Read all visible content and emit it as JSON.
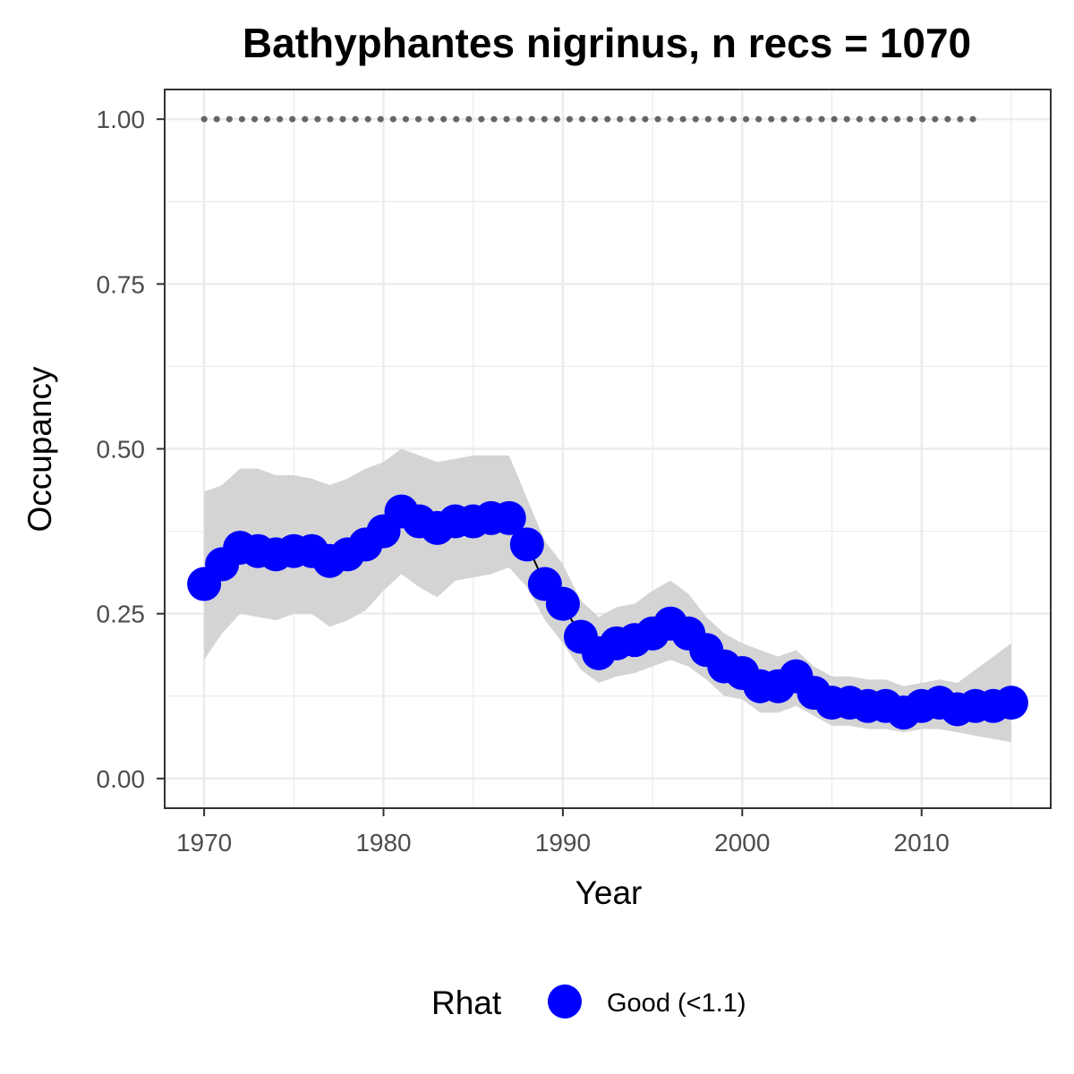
{
  "chart_data": {
    "type": "line",
    "title": "Bathyphantes nigrinus, n recs = 1070",
    "xlabel": "Year",
    "ylabel": "Occupancy",
    "xlim": [
      1967.8,
      2017.2
    ],
    "ylim": [
      -0.045,
      1.045
    ],
    "x_ticks": [
      1970,
      1980,
      1990,
      2000,
      2010
    ],
    "y_ticks": [
      0,
      0.25,
      0.5,
      0.75,
      1.0
    ],
    "x_tick_labels": [
      "1970",
      "1980",
      "1990",
      "2000",
      "2010"
    ],
    "y_tick_labels": [
      "0.00",
      "0.25",
      "0.50",
      "0.75",
      "1.00"
    ],
    "grid": true,
    "legend": {
      "position": "bottom",
      "title": "Rhat",
      "entries": [
        {
          "label": "Good (<1.1)",
          "color": "#0000ff"
        }
      ]
    },
    "colors": {
      "series": "#0000ff",
      "ribbon": "#d4d4d4",
      "reference": "#666666",
      "grid": "#ebebeb",
      "border": "#333333"
    },
    "x": [
      1970,
      1971,
      1972,
      1973,
      1974,
      1975,
      1976,
      1977,
      1978,
      1979,
      1980,
      1981,
      1982,
      1983,
      1984,
      1985,
      1986,
      1987,
      1988,
      1989,
      1990,
      1991,
      1992,
      1993,
      1994,
      1995,
      1996,
      1997,
      1998,
      1999,
      2000,
      2001,
      2002,
      2003,
      2004,
      2005,
      2006,
      2007,
      2008,
      2009,
      2010,
      2011,
      2012,
      2013,
      2014,
      2015
    ],
    "series": [
      {
        "values": [
          0.295,
          0.325,
          0.35,
          0.345,
          0.34,
          0.345,
          0.345,
          0.33,
          0.34,
          0.355,
          0.375,
          0.405,
          0.39,
          0.38,
          0.39,
          0.39,
          0.395,
          0.395,
          0.355,
          0.295,
          0.265,
          0.215,
          0.19,
          0.205,
          0.21,
          0.22,
          0.235,
          0.22,
          0.195,
          0.17,
          0.16,
          0.14,
          0.14,
          0.155,
          0.13,
          0.115,
          0.115,
          0.11,
          0.11,
          0.1,
          0.11,
          0.115,
          0.105,
          0.11,
          0.11,
          0.115
        ],
        "lower": [
          0.18,
          0.22,
          0.25,
          0.245,
          0.24,
          0.25,
          0.25,
          0.23,
          0.24,
          0.255,
          0.285,
          0.31,
          0.29,
          0.275,
          0.3,
          0.305,
          0.31,
          0.32,
          0.29,
          0.24,
          0.205,
          0.165,
          0.145,
          0.155,
          0.16,
          0.17,
          0.18,
          0.17,
          0.15,
          0.125,
          0.12,
          0.1,
          0.1,
          0.11,
          0.095,
          0.08,
          0.08,
          0.075,
          0.075,
          0.07,
          0.075,
          0.075,
          0.07,
          0.065,
          0.06,
          0.055
        ],
        "upper": [
          0.435,
          0.445,
          0.47,
          0.47,
          0.46,
          0.46,
          0.455,
          0.445,
          0.455,
          0.47,
          0.48,
          0.5,
          0.49,
          0.48,
          0.485,
          0.49,
          0.49,
          0.49,
          0.425,
          0.36,
          0.325,
          0.27,
          0.245,
          0.26,
          0.265,
          0.285,
          0.3,
          0.28,
          0.245,
          0.22,
          0.205,
          0.195,
          0.185,
          0.195,
          0.17,
          0.155,
          0.155,
          0.15,
          0.15,
          0.14,
          0.145,
          0.15,
          0.145,
          0.165,
          0.185,
          0.205
        ]
      }
    ],
    "reference_line": {
      "value": 1.0,
      "x_start": 1970,
      "x_end": 2013
    }
  }
}
